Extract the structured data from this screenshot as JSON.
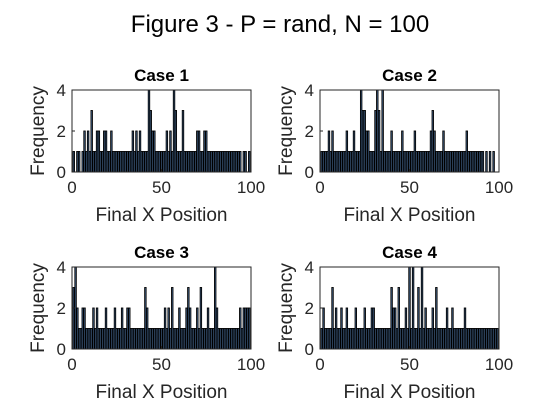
{
  "figure": {
    "title": "Figure 3 - P = rand, N = 100",
    "bar_color": "#4a6f9b",
    "bar_edge": "#000000"
  },
  "chart_data": [
    {
      "type": "bar",
      "title": "Case 1",
      "xlabel": "Final X Position",
      "ylabel": "Frequency",
      "xlim": [
        0,
        100
      ],
      "ylim": [
        0,
        4
      ],
      "xticks": [
        0,
        50,
        100
      ],
      "yticks": [
        0,
        2,
        4
      ],
      "x": [
        1,
        3,
        4,
        6,
        7,
        8,
        9,
        10,
        11,
        12,
        13,
        14,
        15,
        16,
        17,
        18,
        19,
        20,
        21,
        22,
        23,
        24,
        25,
        26,
        27,
        28,
        29,
        30,
        31,
        32,
        33,
        34,
        35,
        36,
        37,
        38,
        39,
        40,
        41,
        42,
        43,
        44,
        45,
        46,
        47,
        48,
        49,
        50,
        51,
        52,
        53,
        54,
        55,
        56,
        57,
        58,
        59,
        60,
        61,
        62,
        63,
        64,
        65,
        66,
        67,
        68,
        69,
        70,
        71,
        72,
        73,
        74,
        75,
        76,
        77,
        78,
        79,
        80,
        81,
        82,
        83,
        84,
        85,
        86,
        87,
        88,
        89,
        90,
        91,
        92,
        93,
        94,
        96,
        97,
        99
      ],
      "values": [
        1,
        1,
        1,
        1,
        2,
        1,
        2,
        1,
        3,
        1,
        1,
        2,
        2,
        1,
        1,
        2,
        2,
        1,
        1,
        2,
        1,
        1,
        1,
        1,
        1,
        1,
        1,
        1,
        1,
        1,
        1,
        2,
        1,
        2,
        1,
        2,
        1,
        1,
        1,
        1,
        4,
        3,
        2,
        2,
        1,
        1,
        1,
        1,
        1,
        1,
        2,
        1,
        2,
        1,
        4,
        3,
        1,
        1,
        1,
        3,
        1,
        1,
        1,
        1,
        1,
        1,
        1,
        2,
        2,
        1,
        1,
        2,
        2,
        1,
        1,
        1,
        1,
        1,
        1,
        1,
        1,
        1,
        1,
        1,
        1,
        1,
        1,
        1,
        1,
        1,
        1,
        1,
        1,
        1,
        1
      ]
    },
    {
      "type": "bar",
      "title": "Case 2",
      "xlabel": "Final X Position",
      "ylabel": "Frequency",
      "xlim": [
        0,
        100
      ],
      "ylim": [
        0,
        4
      ],
      "xticks": [
        0,
        50,
        100
      ],
      "yticks": [
        0,
        2,
        4
      ],
      "x": [
        1,
        2,
        3,
        4,
        5,
        6,
        7,
        8,
        9,
        10,
        11,
        12,
        13,
        14,
        15,
        16,
        17,
        18,
        19,
        20,
        21,
        22,
        23,
        24,
        25,
        26,
        27,
        28,
        29,
        30,
        31,
        32,
        33,
        34,
        35,
        36,
        37,
        38,
        39,
        40,
        41,
        42,
        43,
        44,
        45,
        46,
        47,
        48,
        49,
        50,
        51,
        52,
        53,
        54,
        55,
        56,
        57,
        58,
        59,
        60,
        61,
        62,
        63,
        64,
        65,
        66,
        67,
        68,
        69,
        70,
        71,
        72,
        73,
        74,
        75,
        76,
        77,
        78,
        79,
        80,
        81,
        82,
        83,
        84,
        85,
        86,
        87,
        88,
        89,
        90,
        91,
        93,
        95,
        97
      ],
      "values": [
        1,
        1,
        1,
        1,
        2,
        1,
        2,
        1,
        1,
        1,
        1,
        1,
        1,
        1,
        2,
        1,
        1,
        1,
        2,
        1,
        1,
        1,
        4,
        3,
        3,
        2,
        2,
        1,
        1,
        1,
        3,
        4,
        3,
        1,
        4,
        1,
        1,
        1,
        1,
        2,
        1,
        1,
        1,
        1,
        1,
        2,
        1,
        1,
        1,
        1,
        1,
        1,
        2,
        1,
        1,
        1,
        1,
        1,
        1,
        1,
        1,
        2,
        3,
        2,
        1,
        1,
        1,
        1,
        2,
        1,
        1,
        1,
        1,
        1,
        1,
        1,
        1,
        1,
        1,
        1,
        1,
        2,
        1,
        1,
        1,
        1,
        1,
        1,
        1,
        1,
        1,
        1,
        1,
        1
      ]
    },
    {
      "type": "bar",
      "title": "Case 3",
      "xlabel": "Final X Position",
      "ylabel": "Frequency",
      "xlim": [
        0,
        100
      ],
      "ylim": [
        0,
        4
      ],
      "xticks": [
        0,
        50,
        100
      ],
      "yticks": [
        0,
        2,
        4
      ],
      "x": [
        1,
        2,
        3,
        4,
        5,
        6,
        7,
        8,
        9,
        10,
        11,
        12,
        13,
        14,
        15,
        16,
        17,
        18,
        19,
        20,
        21,
        22,
        23,
        24,
        25,
        26,
        27,
        28,
        29,
        30,
        31,
        32,
        33,
        34,
        35,
        36,
        37,
        38,
        39,
        40,
        41,
        42,
        43,
        44,
        45,
        46,
        47,
        48,
        49,
        50,
        51,
        52,
        53,
        54,
        55,
        56,
        57,
        58,
        59,
        60,
        61,
        62,
        63,
        64,
        65,
        66,
        67,
        68,
        69,
        70,
        71,
        72,
        73,
        74,
        75,
        76,
        77,
        78,
        79,
        80,
        81,
        82,
        83,
        84,
        85,
        86,
        87,
        88,
        89,
        90,
        91,
        92,
        93,
        94,
        95,
        96,
        97,
        98,
        99
      ],
      "values": [
        3,
        4,
        2,
        1,
        1,
        2,
        2,
        1,
        1,
        1,
        1,
        2,
        1,
        2,
        1,
        1,
        1,
        1,
        2,
        1,
        1,
        1,
        1,
        2,
        1,
        1,
        1,
        2,
        1,
        1,
        2,
        2,
        1,
        1,
        1,
        1,
        1,
        1,
        1,
        1,
        3,
        2,
        1,
        1,
        1,
        1,
        1,
        1,
        1,
        1,
        1,
        2,
        1,
        2,
        1,
        3,
        1,
        1,
        1,
        2,
        1,
        1,
        1,
        2,
        3,
        2,
        1,
        1,
        1,
        2,
        1,
        3,
        1,
        1,
        1,
        2,
        1,
        1,
        1,
        4,
        2,
        1,
        1,
        1,
        1,
        1,
        1,
        1,
        1,
        1,
        1,
        1,
        1,
        2,
        1,
        2,
        2,
        2,
        2
      ]
    },
    {
      "type": "bar",
      "title": "Case 4",
      "xlabel": "Final X Position",
      "ylabel": "Frequency",
      "xlim": [
        0,
        100
      ],
      "ylim": [
        0,
        4
      ],
      "xticks": [
        0,
        50,
        100
      ],
      "yticks": [
        0,
        2,
        4
      ],
      "x": [
        1,
        2,
        3,
        4,
        5,
        6,
        7,
        8,
        9,
        10,
        11,
        12,
        13,
        14,
        15,
        16,
        17,
        18,
        19,
        20,
        21,
        22,
        23,
        24,
        25,
        26,
        27,
        28,
        29,
        30,
        31,
        32,
        33,
        34,
        35,
        36,
        37,
        38,
        39,
        40,
        41,
        42,
        43,
        44,
        45,
        46,
        47,
        48,
        49,
        50,
        51,
        52,
        53,
        54,
        55,
        56,
        57,
        58,
        59,
        60,
        61,
        62,
        63,
        64,
        65,
        66,
        67,
        68,
        69,
        70,
        71,
        72,
        73,
        74,
        75,
        76,
        77,
        78,
        79,
        80,
        81,
        82,
        83,
        84,
        85,
        86,
        87,
        88,
        89,
        90,
        91,
        92,
        93,
        94,
        95,
        96,
        97,
        98,
        99
      ],
      "values": [
        1,
        2,
        1,
        1,
        1,
        1,
        3,
        1,
        2,
        1,
        1,
        2,
        1,
        1,
        2,
        1,
        1,
        1,
        1,
        2,
        1,
        1,
        1,
        1,
        2,
        1,
        1,
        1,
        2,
        2,
        1,
        1,
        1,
        1,
        1,
        1,
        1,
        1,
        1,
        3,
        2,
        2,
        1,
        3,
        1,
        1,
        1,
        2,
        1,
        4,
        1,
        4,
        1,
        1,
        3,
        1,
        4,
        1,
        2,
        1,
        1,
        1,
        2,
        1,
        3,
        1,
        1,
        1,
        1,
        1,
        2,
        1,
        1,
        2,
        1,
        1,
        1,
        1,
        1,
        1,
        2,
        1,
        1,
        1,
        1,
        1,
        1,
        1,
        1,
        1,
        1,
        1,
        1,
        1,
        1,
        1,
        1,
        1,
        1
      ]
    }
  ]
}
